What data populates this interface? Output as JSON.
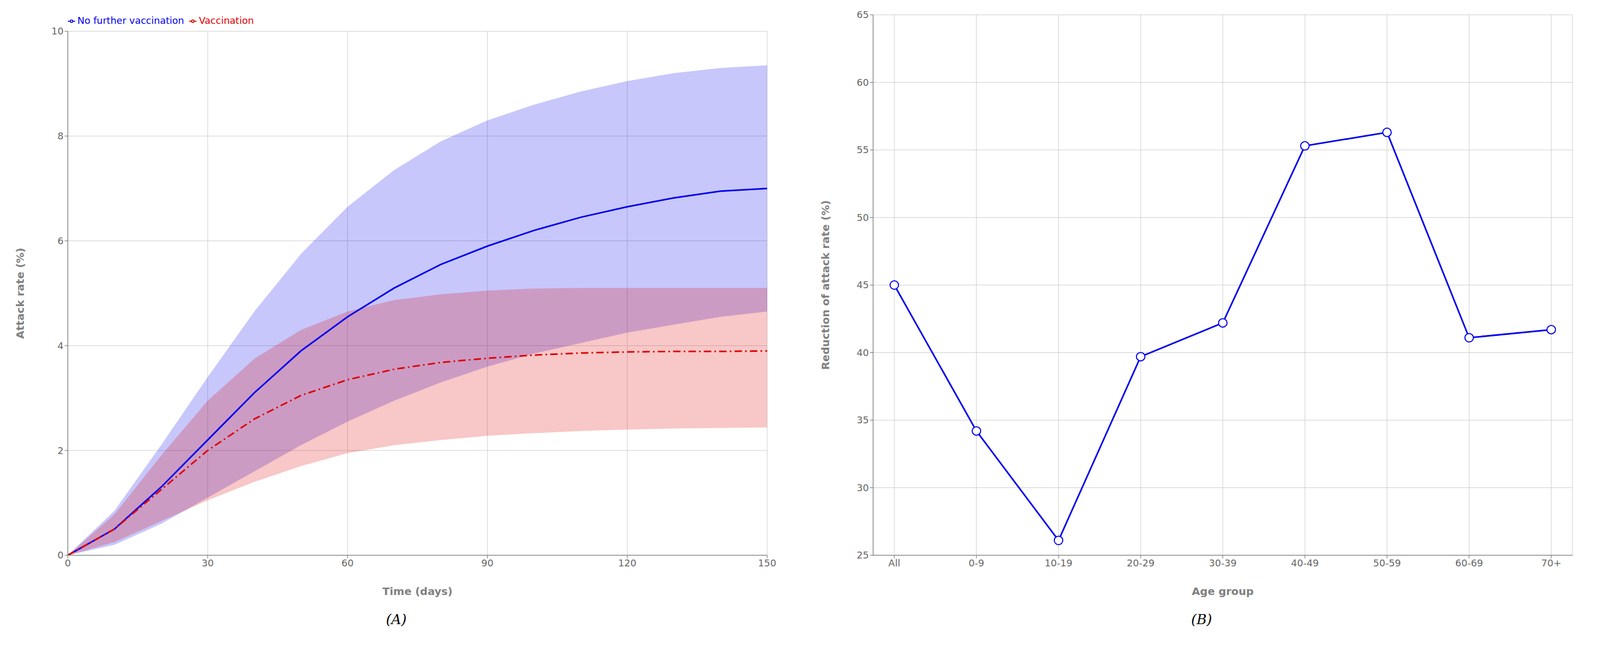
{
  "chart_data": [
    {
      "type": "line",
      "title": "(A)",
      "x_label": "Time (days)",
      "y_label": "Attack rate (%)",
      "x": [
        0,
        10,
        20,
        30,
        40,
        50,
        60,
        70,
        80,
        90,
        100,
        110,
        120,
        130,
        140,
        150
      ],
      "xlim": [
        0,
        150
      ],
      "ylim": [
        0,
        10
      ],
      "xticks": [
        0,
        30,
        60,
        90,
        120,
        150
      ],
      "yticks": [
        0,
        2,
        4,
        6,
        8,
        10
      ],
      "grid": true,
      "legend": "upper left",
      "series": [
        {
          "name": "No further vaccination",
          "color": "#0000EE",
          "line_style": "solid",
          "values": [
            0,
            0.5,
            1.3,
            2.2,
            3.1,
            3.9,
            4.55,
            5.1,
            5.55,
            5.9,
            6.2,
            6.45,
            6.65,
            6.82,
            6.95,
            7.0
          ],
          "lower": [
            0,
            0.2,
            0.6,
            1.1,
            1.6,
            2.1,
            2.55,
            2.95,
            3.3,
            3.6,
            3.85,
            4.05,
            4.25,
            4.4,
            4.55,
            4.65
          ],
          "upper": [
            0,
            0.85,
            2.1,
            3.4,
            4.65,
            5.75,
            6.65,
            7.35,
            7.9,
            8.3,
            8.6,
            8.85,
            9.05,
            9.2,
            9.3,
            9.35
          ]
        },
        {
          "name": "Vaccination",
          "color": "#DD0000",
          "line_style": "dashdot",
          "values": [
            0,
            0.5,
            1.25,
            2.0,
            2.6,
            3.05,
            3.35,
            3.55,
            3.68,
            3.76,
            3.82,
            3.86,
            3.88,
            3.89,
            3.89,
            3.9
          ],
          "lower": [
            0,
            0.25,
            0.65,
            1.05,
            1.4,
            1.7,
            1.95,
            2.1,
            2.2,
            2.28,
            2.33,
            2.37,
            2.4,
            2.42,
            2.43,
            2.44
          ],
          "upper": [
            0,
            0.78,
            1.9,
            2.95,
            3.75,
            4.3,
            4.65,
            4.87,
            4.98,
            5.05,
            5.09,
            5.1,
            5.1,
            5.1,
            5.1,
            5.1
          ]
        }
      ]
    },
    {
      "type": "line",
      "title": "(B)",
      "x_label": "Age group",
      "y_label": "Reduction of attack rate (%)",
      "categories": [
        "All",
        "0-9",
        "10-19",
        "20-29",
        "30-39",
        "40-49",
        "50-59",
        "60-69",
        "70+"
      ],
      "values": [
        45.0,
        34.2,
        26.1,
        39.7,
        42.2,
        55.3,
        56.3,
        41.1,
        41.7
      ],
      "color": "#0000EE",
      "marker": "circle",
      "ylim": [
        25,
        65
      ],
      "yticks": [
        25,
        30,
        35,
        40,
        45,
        50,
        55,
        60,
        65
      ],
      "grid": true
    }
  ]
}
